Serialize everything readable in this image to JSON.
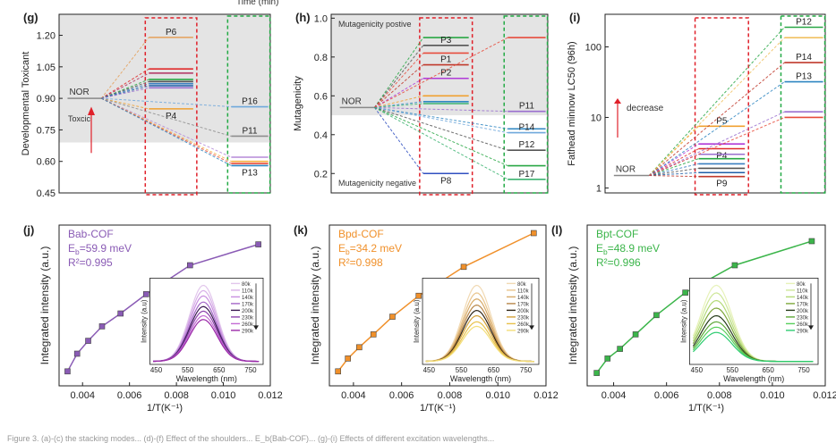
{
  "header_fragment": "Time (min)",
  "caption_fragment": "Figure 3. (a)-(c) the stacking modes... (d)-(f) Effect of the shoulders... E_b(Bab-COF)... (g)-(i) Effects of different excitation wavelengths...",
  "chart_data": [
    {
      "panel": "(g)",
      "type": "line",
      "ylabel": "Developmental Toxicant",
      "ylim": [
        0.45,
        1.3
      ],
      "yticks": [
        0.45,
        0.6,
        0.75,
        0.9,
        1.05,
        1.2
      ],
      "ytick_labels": [
        "0.45",
        "0.60",
        "0.75",
        "0.90",
        "1.05",
        "1.20"
      ],
      "threshold": 0.69,
      "shade": "above-threshold",
      "annotations": {
        "origin": "NOR",
        "region": "Toxcic"
      },
      "origin": 0.9,
      "group1": [
        {
          "name": "P6",
          "value": 1.19,
          "color": "#e5a05a"
        },
        {
          "value": 1.04,
          "color": "#e02a2a"
        },
        {
          "value": 1.02,
          "color": "#b03060"
        },
        {
          "value": 0.99,
          "color": "#28a745"
        },
        {
          "value": 0.98,
          "color": "#555555"
        },
        {
          "value": 0.97,
          "color": "#3a7fc1"
        },
        {
          "value": 0.96,
          "color": "#1f5fa8"
        },
        {
          "value": 0.95,
          "color": "#9a6fcf"
        },
        {
          "name": "P4",
          "value": 0.85,
          "color": "#f0a030"
        }
      ],
      "group2": [
        {
          "name": "P16",
          "value": 0.86,
          "color": "#6fa8dc"
        },
        {
          "name": "P11",
          "value": 0.72,
          "color": "#8e8e8e"
        },
        {
          "value": 0.62,
          "color": "#b58ad8"
        },
        {
          "value": 0.6,
          "color": "#f5b041"
        },
        {
          "value": 0.59,
          "color": "#e74c3c"
        },
        {
          "name": "P13",
          "value": 0.58,
          "color": "#2e86c1"
        }
      ]
    },
    {
      "panel": "(h)",
      "type": "line",
      "ylabel": "Mutagenicity",
      "ylim": [
        0.1,
        1.02
      ],
      "yticks": [
        0.2,
        0.4,
        0.6,
        0.8,
        1.0
      ],
      "ytick_labels": [
        "0.2",
        "0.4",
        "0.6",
        "0.8",
        "1.0"
      ],
      "threshold": 0.5,
      "shade": "above-threshold",
      "annotations": {
        "origin": "NOR",
        "top": "Mutagenicity postive",
        "bottom": "Mutagenicity negative"
      },
      "origin": 0.54,
      "group1": [
        {
          "value": 0.9,
          "color": "#28a745"
        },
        {
          "name": "P3",
          "value": 0.86,
          "color": "#555555"
        },
        {
          "value": 0.82,
          "color": "#e74c3c"
        },
        {
          "name": "P1",
          "value": 0.76,
          "color": "#c0392b"
        },
        {
          "name": "P2",
          "value": 0.69,
          "color": "#b03ad8"
        },
        {
          "value": 0.6,
          "color": "#f0a030"
        },
        {
          "value": 0.57,
          "color": "#2e86c1"
        },
        {
          "value": 0.56,
          "color": "#3cb371"
        },
        {
          "name": "P8",
          "value": 0.2,
          "color": "#3050c0"
        }
      ],
      "group2": [
        {
          "value": 0.9,
          "color": "#e74c3c"
        },
        {
          "name": "P11",
          "value": 0.52,
          "color": "#9a6fcf"
        },
        {
          "value": 0.43,
          "color": "#2e86c1"
        },
        {
          "name": "P14",
          "value": 0.41,
          "color": "#6fa8dc"
        },
        {
          "name": "P12",
          "value": 0.32,
          "color": "#555555"
        },
        {
          "value": 0.24,
          "color": "#28a745"
        },
        {
          "name": "P17",
          "value": 0.17,
          "color": "#3cb371"
        }
      ]
    },
    {
      "panel": "(i)",
      "type": "line",
      "ylabel": "Fathead minnow LC50 (96h)",
      "yscale": "log",
      "ylim": [
        0.85,
        290
      ],
      "yticks": [
        1,
        10,
        100
      ],
      "ytick_labels": [
        "1",
        "10",
        "100"
      ],
      "shade": "none",
      "annotations": {
        "origin": "NOR",
        "arrow": "decrease"
      },
      "origin": 1.5,
      "group1": [
        {
          "name": "P5",
          "value": 7.5,
          "color": "#f0a030"
        },
        {
          "value": 4.2,
          "color": "#b03ad8"
        },
        {
          "name": "P4",
          "value": 3.6,
          "color": "#e02a2a"
        },
        {
          "value": 3.0,
          "color": "#9a6fcf"
        },
        {
          "value": 2.6,
          "color": "#28a745"
        },
        {
          "value": 2.2,
          "color": "#3a7fc1"
        },
        {
          "value": 1.9,
          "color": "#555555"
        },
        {
          "value": 1.65,
          "color": "#1f5fa8"
        },
        {
          "name": "P9",
          "value": 1.45,
          "color": "#c0392b"
        }
      ],
      "group2": [
        {
          "name": "P12",
          "value": 190,
          "color": "#28a745"
        },
        {
          "value": 135,
          "color": "#f0c060"
        },
        {
          "name": "P14",
          "value": 60,
          "color": "#c0392b"
        },
        {
          "name": "P13",
          "value": 32,
          "color": "#2e86c1"
        },
        {
          "value": 12,
          "color": "#9a6fcf"
        },
        {
          "value": 10,
          "color": "#e74c3c"
        }
      ]
    },
    {
      "panel": "(j)",
      "type": "scatter",
      "name": "Bab-COF",
      "eb_text": "E_b=59.9 meV",
      "r2_text": "R²=0.995",
      "color": "#8a5bb5",
      "xlabel": "1/T(K⁻¹)",
      "ylabel": "Integrated intensity (a.u.)",
      "xlim": [
        0.003,
        0.012
      ],
      "xticks": [
        0.004,
        0.006,
        0.008,
        0.01,
        0.012
      ],
      "xtick_labels": [
        "0.004",
        "0.006",
        "0.008",
        "0.010",
        "0.012"
      ],
      "ylim": [
        0.0,
        1.0
      ],
      "x": [
        0.00336,
        0.00377,
        0.00424,
        0.00483,
        0.00562,
        0.00671,
        0.00858,
        0.01149
      ],
      "y": [
        0.09,
        0.2,
        0.28,
        0.37,
        0.45,
        0.57,
        0.75,
        0.88
      ],
      "inset": {
        "xlabel": "Wavelength (nm)",
        "ylabel": "Intensity (a.u)",
        "xticks": [
          450,
          550,
          650,
          750
        ],
        "peak_nm": 600,
        "legend": [
          "80k",
          "110k",
          "140k",
          "170k",
          "200k",
          "230k",
          "260k",
          "290k"
        ],
        "peaks": [
          1.0,
          0.93,
          0.86,
          0.78,
          0.72,
          0.66,
          0.6,
          0.55
        ],
        "colors": [
          "#e2c6ec",
          "#d8b1e8",
          "#c890df",
          "#a366c8",
          "#3b1a52",
          "#8e44ad",
          "#c36bd4",
          "#9b2aa8"
        ]
      }
    },
    {
      "panel": "(k)",
      "type": "scatter",
      "name": "Bpd-COF",
      "eb_text": "E_b=34.2 meV",
      "r2_text": "R²=0.998",
      "color": "#f0902a",
      "xlabel": "1/T(K⁻¹)",
      "ylabel": "Integrated intensity (a.u.)",
      "xlim": [
        0.003,
        0.012
      ],
      "xticks": [
        0.004,
        0.006,
        0.008,
        0.01,
        0.012
      ],
      "xtick_labels": [
        "0.004",
        "0.006",
        "0.008",
        "0.010",
        "0.012"
      ],
      "ylim": [
        0.0,
        1.0
      ],
      "x": [
        0.00336,
        0.00377,
        0.00424,
        0.00483,
        0.00562,
        0.00671,
        0.00858,
        0.01149
      ],
      "y": [
        0.09,
        0.17,
        0.24,
        0.32,
        0.43,
        0.56,
        0.74,
        0.95
      ],
      "inset": {
        "xlabel": "Wavelength (nm)",
        "ylabel": "Intensity (a.u)",
        "xticks": [
          450,
          550,
          650,
          750
        ],
        "peak_nm": 598,
        "legend": [
          "80k",
          "110k",
          "140k",
          "170k",
          "200k",
          "230k",
          "260k",
          "290k"
        ],
        "peaks": [
          1.0,
          0.9,
          0.82,
          0.74,
          0.67,
          0.6,
          0.52,
          0.46
        ],
        "colors": [
          "#f1d9b3",
          "#e9c58d",
          "#d7aa68",
          "#b8874a",
          "#2e2416",
          "#d4a23a",
          "#e8c24a",
          "#f3de7a"
        ]
      }
    },
    {
      "panel": "(l)",
      "type": "scatter",
      "name": "Bpt-COF",
      "eb_text": "E_b=48.9 meV",
      "r2_text": "R²=0.996",
      "color": "#3bb54a",
      "xlabel": "1/T(K⁻¹)",
      "ylabel": "Integrated intensity (a.u.)",
      "xlim": [
        0.003,
        0.012
      ],
      "xticks": [
        0.004,
        0.006,
        0.008,
        0.01,
        0.012
      ],
      "xtick_labels": [
        "0.004",
        "0.006",
        "0.008",
        "0.010",
        "0.012"
      ],
      "ylim": [
        0.0,
        1.0
      ],
      "x": [
        0.00336,
        0.00377,
        0.00424,
        0.00483,
        0.00562,
        0.00671,
        0.00858,
        0.01149
      ],
      "y": [
        0.08,
        0.17,
        0.23,
        0.32,
        0.44,
        0.58,
        0.75,
        0.9
      ],
      "inset": {
        "xlabel": "Wavelength (nm)",
        "ylabel": "Intensity (a.u)",
        "xticks": [
          450,
          550,
          650,
          750
        ],
        "peak_nm": 505,
        "legend": [
          "80k",
          "110k",
          "140k",
          "170k",
          "200k",
          "230k",
          "260k",
          "290k"
        ],
        "peaks": [
          1.0,
          0.9,
          0.8,
          0.7,
          0.6,
          0.52,
          0.45,
          0.38
        ],
        "colors": [
          "#e7f2b9",
          "#cfe79a",
          "#b3d977",
          "#7fa83c",
          "#263b1a",
          "#5fa83a",
          "#58cf5a",
          "#2ecc71"
        ]
      }
    }
  ]
}
